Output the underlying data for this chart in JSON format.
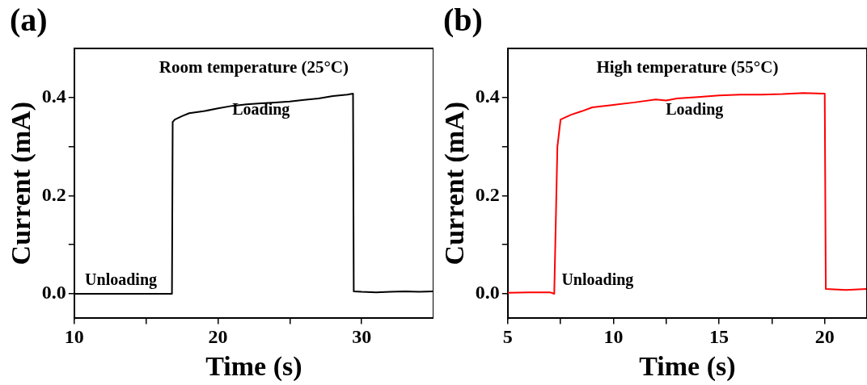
{
  "chart_data": [
    {
      "type": "line",
      "title": "Room temperature (25°C)",
      "xlabel": "Time (s)",
      "ylabel": "Current (mA)",
      "xlim": [
        10,
        35
      ],
      "ylim": [
        -0.05,
        0.5
      ],
      "xticks": [
        10,
        {
          "value": 15,
          "label": null
        },
        20,
        {
          "value": 25,
          "label": null
        },
        30
      ],
      "yticks": [
        "0.0",
        {
          "value": 0.1,
          "label": null
        },
        {
          "value": 0.2,
          "label": "0.2"
        },
        {
          "value": 0.3,
          "label": null
        },
        {
          "value": 0.4,
          "label": "0.4"
        }
      ],
      "grid": false,
      "legend": false,
      "marker": "none",
      "line_style": "solid",
      "annotations": [
        "(a)",
        "Loading",
        "Unloading"
      ],
      "series": [
        {
          "color": "#000000",
          "x": [
            10,
            12,
            14,
            16,
            16.8,
            16.85,
            17,
            17.5,
            18,
            19,
            20,
            21,
            22,
            23,
            24,
            25,
            26,
            27,
            28,
            29,
            29.4,
            29.45,
            30,
            31,
            32,
            33,
            34,
            35
          ],
          "values": [
            0,
            0,
            0,
            0,
            0,
            0.35,
            0.355,
            0.362,
            0.368,
            0.372,
            0.378,
            0.383,
            0.386,
            0.388,
            0.39,
            0.392,
            0.395,
            0.398,
            0.403,
            0.406,
            0.408,
            0.005,
            0.004,
            0.003,
            0.004,
            0.005,
            0.004,
            0.005
          ]
        }
      ]
    },
    {
      "type": "line",
      "title": "High temperature (55°C)",
      "xlabel": "Time (s)",
      "ylabel": "Current (mA)",
      "xlim": [
        5,
        22
      ],
      "ylim": [
        -0.05,
        0.5
      ],
      "xticks": [
        5,
        {
          "value": 7.5,
          "label": null
        },
        10,
        {
          "value": 12.5,
          "label": null
        },
        15,
        {
          "value": 17.5,
          "label": null
        },
        20
      ],
      "yticks": [
        {
          "value": 0,
          "label": "0.0"
        },
        {
          "value": 0.1,
          "label": null
        },
        {
          "value": 0.2,
          "label": "0.2"
        },
        {
          "value": 0.3,
          "label": null
        },
        {
          "value": 0.4,
          "label": "0.4"
        }
      ],
      "grid": false,
      "legend": false,
      "marker": "none",
      "line_style": "solid",
      "annotations": [
        "(b)",
        "Loading",
        "Unloading"
      ],
      "series": [
        {
          "color": "#ff0000",
          "x": [
            5,
            6,
            7,
            7.2,
            7.35,
            7.5,
            8,
            8.5,
            9,
            10,
            11,
            12,
            12.5,
            13,
            14,
            15,
            16,
            17,
            18,
            19,
            20,
            20.05,
            21,
            22
          ],
          "values": [
            0.002,
            0.003,
            0.003,
            0,
            0.3,
            0.355,
            0.365,
            0.372,
            0.38,
            0.385,
            0.39,
            0.396,
            0.394,
            0.398,
            0.401,
            0.404,
            0.406,
            0.406,
            0.407,
            0.409,
            0.408,
            0.01,
            0.008,
            0.01
          ]
        }
      ]
    }
  ]
}
